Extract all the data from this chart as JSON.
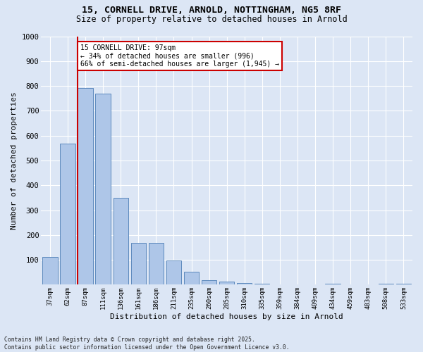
{
  "title_line1": "15, CORNELL DRIVE, ARNOLD, NOTTINGHAM, NG5 8RF",
  "title_line2": "Size of property relative to detached houses in Arnold",
  "xlabel": "Distribution of detached houses by size in Arnold",
  "ylabel": "Number of detached properties",
  "categories": [
    "37sqm",
    "62sqm",
    "87sqm",
    "111sqm",
    "136sqm",
    "161sqm",
    "186sqm",
    "211sqm",
    "235sqm",
    "260sqm",
    "285sqm",
    "310sqm",
    "335sqm",
    "359sqm",
    "384sqm",
    "409sqm",
    "434sqm",
    "459sqm",
    "483sqm",
    "508sqm",
    "533sqm"
  ],
  "values": [
    112,
    568,
    793,
    770,
    350,
    168,
    168,
    97,
    52,
    18,
    12,
    8,
    5,
    0,
    0,
    0,
    5,
    0,
    0,
    5,
    5
  ],
  "bar_color": "#aec6e8",
  "bar_edge_color": "#4c7db5",
  "vline_color": "#cc0000",
  "annotation_text": "15 CORNELL DRIVE: 97sqm\n← 34% of detached houses are smaller (996)\n66% of semi-detached houses are larger (1,945) →",
  "annotation_box_color": "#ffffff",
  "annotation_box_edge": "#cc0000",
  "ylim": [
    0,
    1000
  ],
  "yticks": [
    0,
    100,
    200,
    300,
    400,
    500,
    600,
    700,
    800,
    900,
    1000
  ],
  "fig_bg_color": "#dce6f5",
  "plot_bg_color": "#dce6f5",
  "grid_color": "#ffffff",
  "footnote": "Contains HM Land Registry data © Crown copyright and database right 2025.\nContains public sector information licensed under the Open Government Licence v3.0."
}
